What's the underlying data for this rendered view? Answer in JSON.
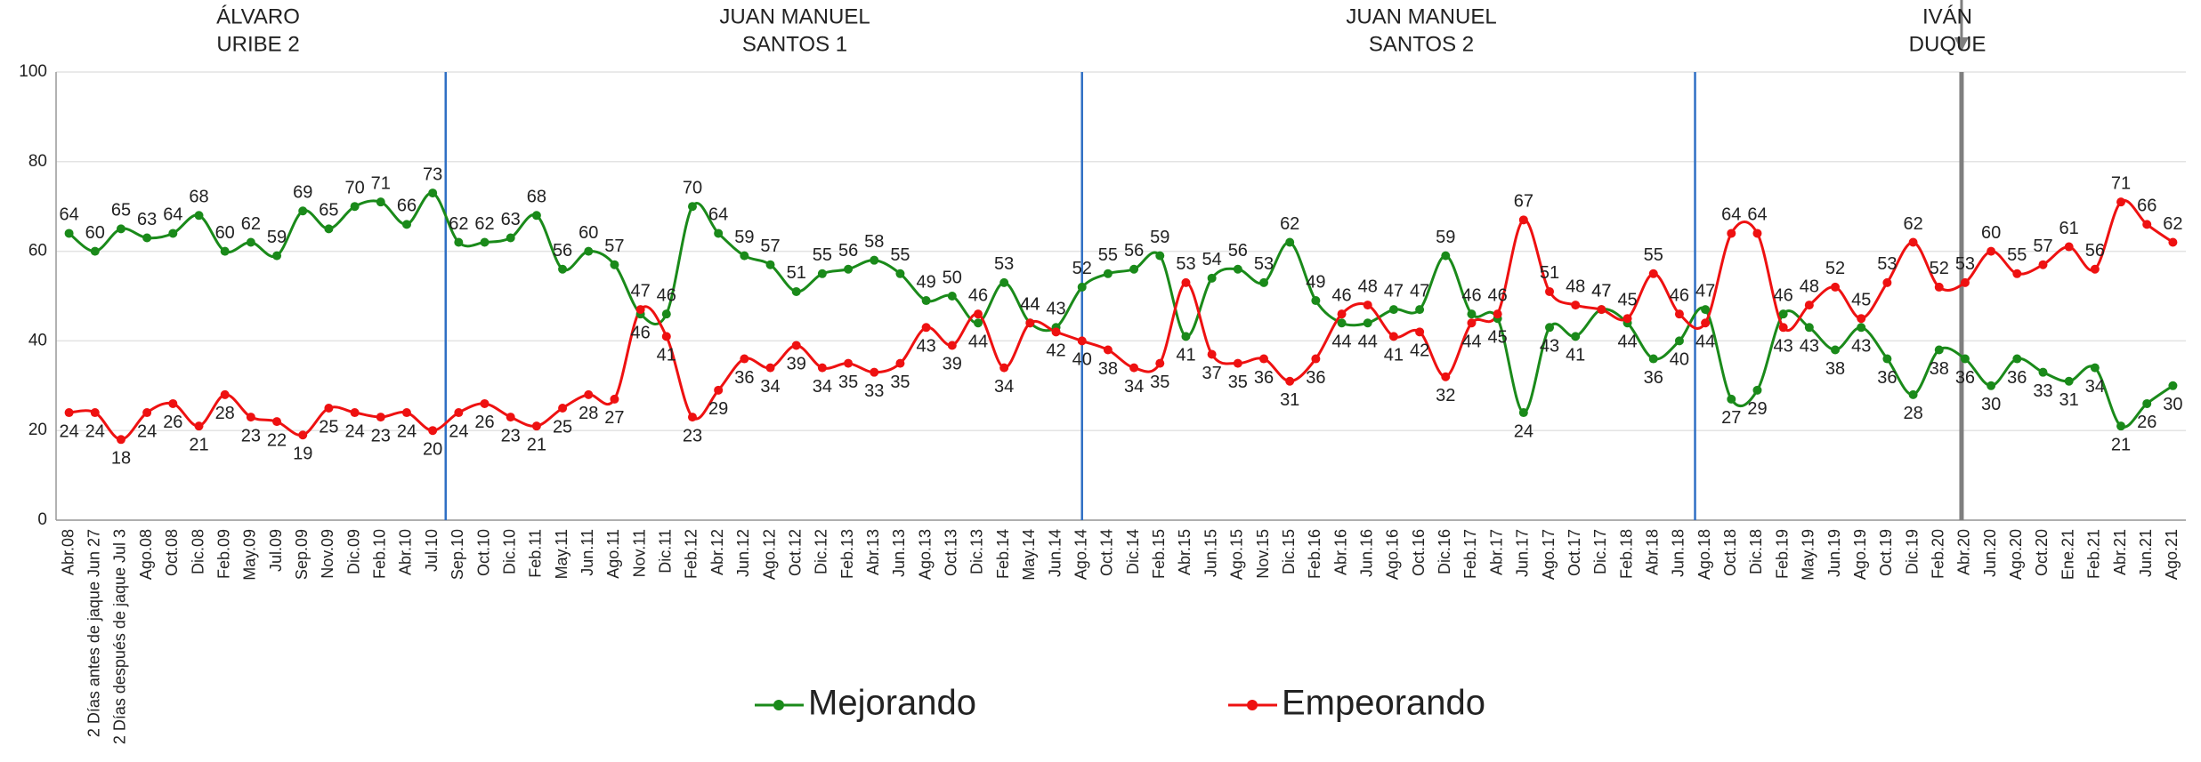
{
  "chart_data": {
    "type": "line",
    "periods": [
      [
        "ÁLVARO",
        "URIBE 2"
      ],
      [
        "JUAN MANUEL",
        "SANTOS 1"
      ],
      [
        "JUAN MANUEL",
        "SANTOS 2"
      ],
      [
        "IVÁN",
        "DUQUE"
      ]
    ],
    "categories": [
      "Abr.08",
      "2 Días antes de jaque Jun 27",
      "2 Días después de jaque Jul 3",
      "Ago.08",
      "Oct.08",
      "Dic.08",
      "Feb.09",
      "May.09",
      "Jul.09",
      "Sep.09",
      "Nov.09",
      "Dic.09",
      "Feb.10",
      "Abr.10",
      "Jul.10",
      "Sep.10",
      "Oct.10",
      "Dic.10",
      "Feb.11",
      "May.11",
      "Jun.11",
      "Ago.11",
      "Nov.11",
      "Dic.11",
      "Feb.12",
      "Abr.12",
      "Jun.12",
      "Ago.12",
      "Oct.12",
      "Dic.12",
      "Feb.13",
      "Abr.13",
      "Jun.13",
      "Ago.13",
      "Oct.13",
      "Dic.13",
      "Feb.14",
      "May.14",
      "Jun.14",
      "Ago.14",
      "Oct.14",
      "Dic.14",
      "Feb.15",
      "Abr.15",
      "Jun.15",
      "Ago.15",
      "Nov.15",
      "Dic.15",
      "Feb.16",
      "Abr.16",
      "Jun.16",
      "Ago.16",
      "Oct.16",
      "Dic.16",
      "Feb.17",
      "Abr.17",
      "Jun.17",
      "Ago.17",
      "Oct.17",
      "Dic.17",
      "Feb.18",
      "Abr.18",
      "Jun.18",
      "Ago.18",
      "Oct.18",
      "Dic.18",
      "Feb.19",
      "May.19",
      "Jun.19",
      "Ago.19",
      "Oct.19",
      "Dic.19",
      "Feb.20",
      "Abr.20",
      "Jun.20",
      "Ago.20",
      "Oct.20",
      "Ene.21",
      "Feb.21",
      "Abr.21",
      "Jun.21",
      "Ago.21"
    ],
    "series": [
      {
        "name": "Mejorando",
        "color": "#1a8a1a",
        "values": [
          64,
          60,
          65,
          63,
          64,
          68,
          60,
          62,
          59,
          69,
          65,
          70,
          71,
          66,
          73,
          62,
          62,
          63,
          68,
          56,
          60,
          57,
          46,
          46,
          70,
          64,
          59,
          57,
          51,
          55,
          56,
          58,
          55,
          49,
          50,
          44,
          53,
          44,
          43,
          52,
          55,
          56,
          59,
          41,
          54,
          56,
          53,
          62,
          49,
          44,
          44,
          47,
          47,
          59,
          46,
          45,
          24,
          43,
          41,
          47,
          44,
          36,
          40,
          47,
          27,
          29,
          46,
          43,
          38,
          43,
          36,
          28,
          38,
          36,
          30,
          36,
          33,
          31,
          34,
          21,
          26,
          30
        ]
      },
      {
        "name": "Empeorando",
        "color": "#ee1111",
        "values": [
          24,
          24,
          18,
          24,
          26,
          21,
          28,
          23,
          22,
          19,
          25,
          24,
          23,
          24,
          20,
          24,
          26,
          23,
          21,
          25,
          28,
          27,
          47,
          41,
          23,
          29,
          36,
          34,
          39,
          34,
          35,
          33,
          35,
          43,
          39,
          46,
          34,
          44,
          42,
          40,
          38,
          34,
          35,
          53,
          37,
          35,
          36,
          31,
          36,
          46,
          48,
          41,
          42,
          32,
          44,
          46,
          67,
          51,
          48,
          47,
          45,
          55,
          46,
          44,
          64,
          64,
          43,
          48,
          52,
          45,
          53,
          62,
          52,
          53,
          60,
          55,
          57,
          61,
          56,
          71,
          66,
          62
        ]
      }
    ],
    "ylim": [
      0,
      100
    ],
    "yticks": [
      0,
      20,
      40,
      60,
      80,
      100
    ],
    "grid": true
  }
}
